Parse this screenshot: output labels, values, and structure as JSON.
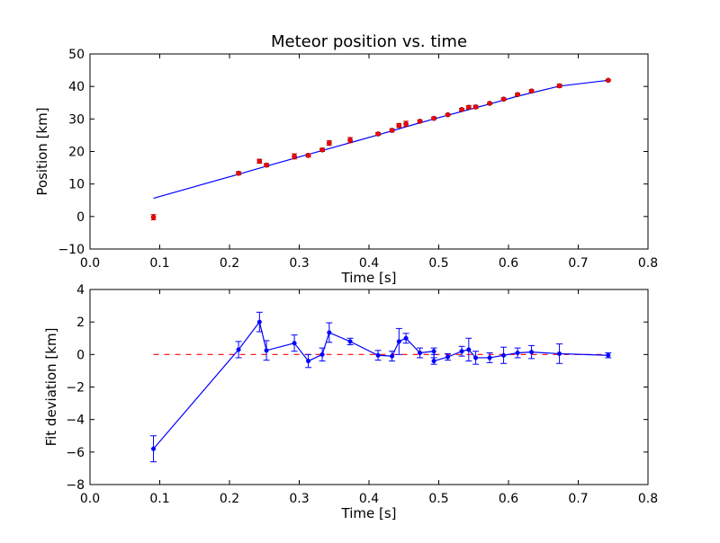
{
  "chart_data": [
    {
      "type": "scatter",
      "title": "Meteor position vs. time",
      "xlabel": "Time [s]",
      "ylabel": "Position [km]",
      "xlim": [
        0.0,
        0.8
      ],
      "ylim": [
        -10,
        50
      ],
      "xticks": [
        "0.0",
        "0.1",
        "0.2",
        "0.3",
        "0.4",
        "0.5",
        "0.6",
        "0.7",
        "0.8"
      ],
      "yticks": [
        "−10",
        "0",
        "10",
        "20",
        "30",
        "40",
        "50"
      ],
      "grid": false,
      "series": [
        {
          "kind": "errorbar-points",
          "color": "#ff0000",
          "x": [
            0.091,
            0.213,
            0.243,
            0.253,
            0.293,
            0.313,
            0.333,
            0.343,
            0.373,
            0.413,
            0.433,
            0.443,
            0.453,
            0.473,
            0.493,
            0.513,
            0.533,
            0.543,
            0.553,
            0.573,
            0.593,
            0.613,
            0.633,
            0.673,
            0.743
          ],
          "y": [
            -0.2,
            13.3,
            17.0,
            15.8,
            18.5,
            18.8,
            20.5,
            22.6,
            23.5,
            25.4,
            26.5,
            28.0,
            28.5,
            29.3,
            30.2,
            31.3,
            32.9,
            33.6,
            33.7,
            34.8,
            36.1,
            37.5,
            38.6,
            40.2,
            41.9
          ],
          "yerr": [
            0.8,
            0.5,
            0.6,
            0.5,
            0.8,
            0.5,
            0.5,
            0.7,
            0.8,
            0.4,
            0.5,
            0.6,
            0.8,
            0.4,
            0.4,
            0.3,
            0.4,
            0.5,
            0.5,
            0.3,
            0.4,
            0.4,
            0.4,
            0.5,
            0.3
          ]
        },
        {
          "kind": "fit-line",
          "color": "#0000ff",
          "x": [
            0.091,
            0.213,
            0.253,
            0.293,
            0.333,
            0.373,
            0.413,
            0.453,
            0.493,
            0.533,
            0.573,
            0.613,
            0.673,
            0.743
          ],
          "y": [
            5.6,
            13.0,
            15.5,
            17.9,
            20.3,
            22.7,
            25.1,
            27.6,
            30.0,
            32.3,
            34.6,
            37.0,
            40.1,
            41.9
          ]
        }
      ]
    },
    {
      "type": "line",
      "xlabel": "Time [s]",
      "ylabel": "Fit deviation [km]",
      "xlim": [
        0.0,
        0.8
      ],
      "ylim": [
        -8,
        4
      ],
      "xticks": [
        "0.0",
        "0.1",
        "0.2",
        "0.3",
        "0.4",
        "0.5",
        "0.6",
        "0.7",
        "0.8"
      ],
      "yticks": [
        "−8",
        "−6",
        "−4",
        "−2",
        "0",
        "2",
        "4"
      ],
      "grid": false,
      "series": [
        {
          "kind": "errorbar-line",
          "color": "#0000ff",
          "x": [
            0.091,
            0.213,
            0.243,
            0.253,
            0.293,
            0.313,
            0.333,
            0.343,
            0.373,
            0.413,
            0.433,
            0.443,
            0.453,
            0.473,
            0.493,
            0.493,
            0.513,
            0.533,
            0.543,
            0.553,
            0.573,
            0.593,
            0.613,
            0.633,
            0.673,
            0.743
          ],
          "y": [
            -5.8,
            0.3,
            2.0,
            0.25,
            0.7,
            -0.4,
            0.0,
            1.35,
            0.8,
            -0.05,
            -0.1,
            0.8,
            1.0,
            0.1,
            0.2,
            -0.4,
            -0.15,
            0.2,
            0.3,
            -0.2,
            -0.2,
            -0.05,
            0.1,
            0.15,
            0.05,
            -0.05
          ],
          "yerr": [
            0.8,
            0.5,
            0.6,
            0.6,
            0.5,
            0.4,
            0.4,
            0.6,
            0.2,
            0.3,
            0.3,
            0.8,
            0.3,
            0.3,
            0.2,
            0.2,
            0.2,
            0.3,
            0.7,
            0.4,
            0.3,
            0.5,
            0.3,
            0.4,
            0.6,
            0.15
          ]
        },
        {
          "kind": "zero-reference",
          "color": "#ff0000",
          "style": "dashed",
          "x": [
            0.091,
            0.743
          ],
          "y": [
            0,
            0
          ]
        }
      ]
    }
  ]
}
